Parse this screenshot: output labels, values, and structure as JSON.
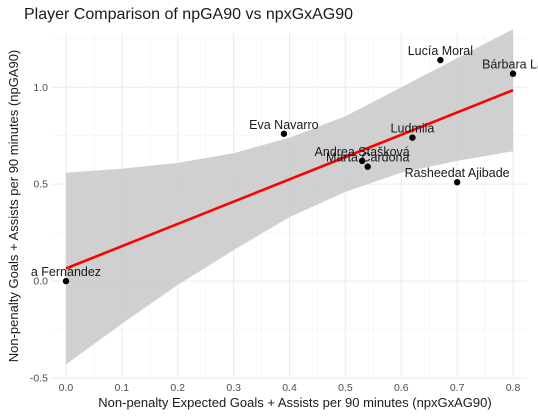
{
  "chart_data": {
    "type": "scatter",
    "title": "Player Comparison of npGA90 vs npxGxAG90",
    "xlabel": "Non-penalty Expected Goals + Assists per 90 minutes (npxGxAG90)",
    "ylabel": "Non-penalty Goals + Assists per 90 minutes (npGA90)",
    "xlim": [
      -0.025,
      0.825
    ],
    "ylim": [
      -0.5,
      1.28
    ],
    "x_ticks": [
      0.0,
      0.1,
      0.2,
      0.3,
      0.4,
      0.5,
      0.6,
      0.7,
      0.8
    ],
    "x_tick_labels": [
      "0.0",
      "0.1",
      "0.2",
      "0.3",
      "0.4",
      "0.5",
      "0.6",
      "0.7",
      "0.8"
    ],
    "y_ticks": [
      -0.5,
      0.0,
      0.5,
      1.0
    ],
    "y_tick_labels": [
      "-0.5",
      "0.0",
      "0.5",
      "1.0"
    ],
    "grid": true,
    "points": [
      {
        "label": "a Fernández",
        "x": 0.0,
        "y": 0.0
      },
      {
        "label": "Eva Navarro",
        "x": 0.39,
        "y": 0.76
      },
      {
        "label": "Andrea Stašková",
        "x": 0.53,
        "y": 0.62
      },
      {
        "label": "Marta Cardona",
        "x": 0.54,
        "y": 0.59
      },
      {
        "label": "Ludmila",
        "x": 0.62,
        "y": 0.74
      },
      {
        "label": "Rasheedat Ajibade",
        "x": 0.7,
        "y": 0.51
      },
      {
        "label": "Lucía Moral",
        "x": 0.67,
        "y": 1.14
      },
      {
        "label": "Bárbara La",
        "x": 0.8,
        "y": 1.07
      }
    ],
    "regression": {
      "x": [
        0.0,
        0.8
      ],
      "y": [
        0.065,
        0.985
      ],
      "color": "#ff0000",
      "band": {
        "x": [
          0.0,
          0.1,
          0.2,
          0.3,
          0.4,
          0.5,
          0.6,
          0.7,
          0.8
        ],
        "lower": [
          -0.43,
          -0.22,
          -0.02,
          0.16,
          0.33,
          0.46,
          0.56,
          0.62,
          0.67
        ],
        "upper": [
          0.56,
          0.58,
          0.61,
          0.66,
          0.74,
          0.85,
          1.0,
          1.15,
          1.3
        ]
      },
      "band_color": "#c8c8c8"
    }
  }
}
